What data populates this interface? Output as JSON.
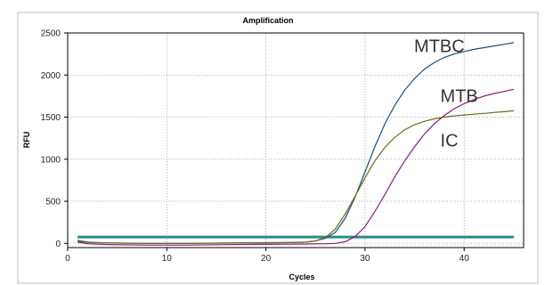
{
  "chart_data": {
    "type": "line",
    "title": "Amplification",
    "xlabel": "Cycles",
    "ylabel": "RFU",
    "xlim": [
      0,
      46
    ],
    "ylim": [
      -50,
      2500
    ],
    "x_ticks": [
      0,
      10,
      20,
      30,
      40
    ],
    "y_ticks": [
      0,
      500,
      1000,
      1500,
      2000,
      2500
    ],
    "grid": true,
    "threshold": {
      "value": 75,
      "color": "#2a8a8a"
    },
    "series": [
      {
        "name": "MTBC",
        "color": "#1f4e79",
        "points": [
          [
            1,
            35
          ],
          [
            2,
            15
          ],
          [
            4,
            5
          ],
          [
            8,
            0
          ],
          [
            12,
            0
          ],
          [
            16,
            5
          ],
          [
            20,
            8
          ],
          [
            22,
            10
          ],
          [
            24,
            15
          ],
          [
            25,
            30
          ],
          [
            26,
            60
          ],
          [
            27,
            130
          ],
          [
            28,
            300
          ],
          [
            29,
            550
          ],
          [
            30,
            850
          ],
          [
            31,
            1150
          ],
          [
            32,
            1420
          ],
          [
            33,
            1640
          ],
          [
            34,
            1820
          ],
          [
            35,
            1960
          ],
          [
            36,
            2070
          ],
          [
            37,
            2150
          ],
          [
            38,
            2210
          ],
          [
            39,
            2250
          ],
          [
            40,
            2280
          ],
          [
            41,
            2305
          ],
          [
            42,
            2325
          ],
          [
            43,
            2345
          ],
          [
            44,
            2365
          ],
          [
            45,
            2385
          ]
        ]
      },
      {
        "name": "IC",
        "color": "#6b6b1f",
        "points": [
          [
            1,
            25
          ],
          [
            2,
            10
          ],
          [
            4,
            5
          ],
          [
            8,
            0
          ],
          [
            12,
            0
          ],
          [
            16,
            3
          ],
          [
            20,
            5
          ],
          [
            22,
            8
          ],
          [
            24,
            15
          ],
          [
            25,
            30
          ],
          [
            26,
            70
          ],
          [
            27,
            170
          ],
          [
            28,
            350
          ],
          [
            29,
            560
          ],
          [
            30,
            780
          ],
          [
            31,
            980
          ],
          [
            32,
            1140
          ],
          [
            33,
            1260
          ],
          [
            34,
            1350
          ],
          [
            35,
            1410
          ],
          [
            36,
            1450
          ],
          [
            37,
            1480
          ],
          [
            38,
            1500
          ],
          [
            39,
            1515
          ],
          [
            40,
            1525
          ],
          [
            41,
            1535
          ],
          [
            42,
            1545
          ],
          [
            43,
            1555
          ],
          [
            44,
            1565
          ],
          [
            45,
            1575
          ]
        ]
      },
      {
        "name": "MTB",
        "color": "#8b1a7a",
        "points": [
          [
            1,
            15
          ],
          [
            2,
            -5
          ],
          [
            4,
            -15
          ],
          [
            8,
            -20
          ],
          [
            12,
            -20
          ],
          [
            16,
            -15
          ],
          [
            20,
            -12
          ],
          [
            22,
            -10
          ],
          [
            24,
            -8
          ],
          [
            26,
            -5
          ],
          [
            27,
            0
          ],
          [
            28,
            20
          ],
          [
            29,
            80
          ],
          [
            30,
            200
          ],
          [
            31,
            380
          ],
          [
            32,
            580
          ],
          [
            33,
            790
          ],
          [
            34,
            980
          ],
          [
            35,
            1150
          ],
          [
            36,
            1300
          ],
          [
            37,
            1420
          ],
          [
            38,
            1520
          ],
          [
            39,
            1600
          ],
          [
            40,
            1660
          ],
          [
            41,
            1710
          ],
          [
            42,
            1750
          ],
          [
            43,
            1780
          ],
          [
            44,
            1805
          ],
          [
            45,
            1830
          ]
        ]
      }
    ],
    "annotations": [
      {
        "text": "MTBC",
        "x": 37.5,
        "y": 2270
      },
      {
        "text": "MTB",
        "x": 39.5,
        "y": 1680
      },
      {
        "text": "IC",
        "x": 38.5,
        "y": 1150
      }
    ]
  }
}
